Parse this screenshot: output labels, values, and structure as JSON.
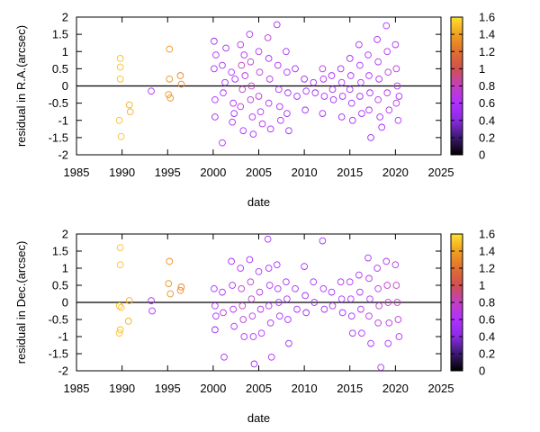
{
  "chart_data": [
    {
      "type": "scatter",
      "xlabel": "date",
      "ylabel": "residual in R.A.(arcsec)",
      "xlim": [
        1985,
        2025
      ],
      "ylim": [
        -2,
        2
      ],
      "xticks": [
        "1985",
        "1990",
        "1995",
        "2000",
        "2005",
        "2010",
        "2015",
        "2020",
        "2025"
      ],
      "yticks": [
        "-2",
        "-1.5",
        "-1",
        "-0.5",
        "0",
        "0.5",
        "1",
        "1.5",
        "2"
      ],
      "zero_line": true,
      "grid": false,
      "colorbar": {
        "range": [
          0,
          1.6
        ],
        "ticks": [
          "0",
          "0.2",
          "0.4",
          "0.6",
          "0.8",
          "1",
          "1.2",
          "1.4",
          "1.6"
        ],
        "colormap": [
          "#000000",
          "#3b1a6e",
          "#8a2be2",
          "#b030ff",
          "#c040c0",
          "#d05050",
          "#e07030",
          "#f0a020",
          "#ffe030"
        ]
      },
      "points": [
        [
          1989.8,
          0.8,
          1.5
        ],
        [
          1989.8,
          0.55,
          1.5
        ],
        [
          1989.8,
          0.2,
          1.5
        ],
        [
          1989.7,
          -1.0,
          1.5
        ],
        [
          1989.9,
          -1.47,
          1.5
        ],
        [
          1990.8,
          -0.55,
          1.45
        ],
        [
          1990.9,
          -0.75,
          1.45
        ],
        [
          1995.2,
          1.07,
          1.35
        ],
        [
          1995.2,
          0.2,
          1.35
        ],
        [
          1995.1,
          -0.25,
          1.35
        ],
        [
          1995.3,
          -0.35,
          1.35
        ],
        [
          1996.4,
          0.3,
          1.3
        ],
        [
          1996.5,
          0.05,
          1.3
        ],
        [
          1993.2,
          -0.15,
          0.55
        ],
        [
          2000.1,
          1.3,
          0.5
        ],
        [
          2000.1,
          0.5,
          0.55
        ],
        [
          2000.2,
          -0.4,
          0.6
        ],
        [
          2000.3,
          0.9,
          0.6
        ],
        [
          2000.2,
          -0.9,
          0.5
        ],
        [
          2001.0,
          0.6,
          0.55
        ],
        [
          2001.1,
          -0.2,
          0.6
        ],
        [
          2001.0,
          -1.65,
          0.55
        ],
        [
          2001.3,
          0.1,
          0.5
        ],
        [
          2001.4,
          1.1,
          0.55
        ],
        [
          2002.0,
          0.4,
          0.6
        ],
        [
          2002.2,
          -0.5,
          0.55
        ],
        [
          2002.1,
          -1.05,
          0.55
        ],
        [
          2002.4,
          0.2,
          0.6
        ],
        [
          2002.3,
          -0.8,
          0.55
        ],
        [
          2003.0,
          1.2,
          0.7
        ],
        [
          2003.1,
          0.6,
          0.8
        ],
        [
          2003.2,
          -0.1,
          0.8
        ],
        [
          2003.0,
          -0.6,
          0.75
        ],
        [
          2003.3,
          -1.3,
          0.6
        ],
        [
          2003.4,
          0.9,
          0.6
        ],
        [
          2003.5,
          0.3,
          0.7
        ],
        [
          2004.0,
          1.5,
          0.6
        ],
        [
          2004.1,
          0.7,
          0.75
        ],
        [
          2004.2,
          0.0,
          0.8
        ],
        [
          2004.1,
          -0.4,
          0.7
        ],
        [
          2004.3,
          -0.9,
          0.6
        ],
        [
          2004.4,
          -1.4,
          0.55
        ],
        [
          2005.0,
          1.0,
          0.6
        ],
        [
          2005.1,
          0.4,
          0.7
        ],
        [
          2005.0,
          -0.3,
          0.7
        ],
        [
          2005.2,
          -0.75,
          0.6
        ],
        [
          2005.4,
          -1.1,
          0.55
        ],
        [
          2006.0,
          1.4,
          0.75
        ],
        [
          2006.1,
          0.8,
          0.6
        ],
        [
          2006.2,
          0.2,
          0.65
        ],
        [
          2006.1,
          -0.5,
          0.6
        ],
        [
          2006.3,
          -1.25,
          0.55
        ],
        [
          2007.0,
          1.78,
          0.55
        ],
        [
          2007.1,
          0.6,
          0.6
        ],
        [
          2007.2,
          -0.1,
          0.6
        ],
        [
          2007.3,
          -0.6,
          0.55
        ],
        [
          2007.4,
          -1.0,
          0.55
        ],
        [
          2008.0,
          1.0,
          0.55
        ],
        [
          2008.1,
          0.4,
          0.6
        ],
        [
          2008.2,
          -0.2,
          0.55
        ],
        [
          2008.1,
          -0.8,
          0.55
        ],
        [
          2008.3,
          -1.3,
          0.5
        ],
        [
          2009.0,
          0.5,
          0.55
        ],
        [
          2009.2,
          -0.3,
          0.55
        ],
        [
          2010.0,
          0.2,
          0.5
        ],
        [
          2010.2,
          -0.15,
          0.55
        ],
        [
          2010.1,
          -0.7,
          0.5
        ],
        [
          2011.0,
          0.1,
          0.55
        ],
        [
          2011.2,
          -0.2,
          0.5
        ],
        [
          2012.0,
          0.5,
          0.7
        ],
        [
          2012.1,
          0.2,
          0.6
        ],
        [
          2012.2,
          -0.3,
          0.6
        ],
        [
          2012.0,
          -0.8,
          0.55
        ],
        [
          2013.0,
          0.3,
          0.55
        ],
        [
          2013.1,
          -0.1,
          0.55
        ],
        [
          2013.2,
          -0.4,
          0.5
        ],
        [
          2014.0,
          0.5,
          0.55
        ],
        [
          2014.1,
          0.1,
          0.6
        ],
        [
          2014.2,
          -0.3,
          0.55
        ],
        [
          2014.1,
          -0.9,
          0.5
        ],
        [
          2015.0,
          0.8,
          0.55
        ],
        [
          2015.1,
          0.3,
          0.6
        ],
        [
          2015.0,
          -0.1,
          0.55
        ],
        [
          2015.2,
          -0.5,
          0.55
        ],
        [
          2015.3,
          -1.0,
          0.5
        ],
        [
          2016.0,
          1.2,
          0.55
        ],
        [
          2016.1,
          0.6,
          0.6
        ],
        [
          2016.2,
          0.1,
          0.6
        ],
        [
          2016.1,
          -0.3,
          0.55
        ],
        [
          2016.3,
          -0.8,
          0.55
        ],
        [
          2017.0,
          0.9,
          0.6
        ],
        [
          2017.1,
          0.3,
          0.6
        ],
        [
          2017.2,
          -0.2,
          0.55
        ],
        [
          2017.1,
          -0.7,
          0.55
        ],
        [
          2017.3,
          -1.5,
          0.5
        ],
        [
          2018.0,
          1.35,
          0.55
        ],
        [
          2018.1,
          0.7,
          0.65
        ],
        [
          2018.2,
          0.2,
          0.6
        ],
        [
          2018.1,
          -0.4,
          0.65
        ],
        [
          2018.3,
          -0.9,
          0.55
        ],
        [
          2018.5,
          -1.2,
          0.55
        ],
        [
          2019.0,
          1.75,
          0.6
        ],
        [
          2019.1,
          1.0,
          0.65
        ],
        [
          2019.2,
          0.4,
          0.7
        ],
        [
          2019.1,
          -0.2,
          0.7
        ],
        [
          2019.3,
          -0.7,
          0.65
        ],
        [
          2020.0,
          1.2,
          0.6
        ],
        [
          2020.1,
          0.5,
          0.7
        ],
        [
          2020.2,
          0.0,
          0.7
        ],
        [
          2020.1,
          -0.5,
          0.65
        ],
        [
          2020.3,
          -1.0,
          0.6
        ],
        [
          2020.4,
          -0.3,
          0.6
        ]
      ]
    },
    {
      "type": "scatter",
      "xlabel": "date",
      "ylabel": "residual in Dec.(arcsec)",
      "xlim": [
        1985,
        2025
      ],
      "ylim": [
        -2,
        2
      ],
      "xticks": [
        "1985",
        "1990",
        "1995",
        "2000",
        "2005",
        "2010",
        "2015",
        "2020",
        "2025"
      ],
      "yticks": [
        "-2",
        "-1.5",
        "-1",
        "-0.5",
        "0",
        "0.5",
        "1",
        "1.5",
        "2"
      ],
      "zero_line": true,
      "grid": false,
      "colorbar": {
        "range": [
          0,
          1.6
        ],
        "ticks": [
          "0",
          "0.2",
          "0.4",
          "0.6",
          "0.8",
          "1",
          "1.2",
          "1.4",
          "1.6"
        ],
        "colormap": [
          "#000000",
          "#3b1a6e",
          "#8a2be2",
          "#b030ff",
          "#c040c0",
          "#d05050",
          "#e07030",
          "#f0a020",
          "#ffe030"
        ]
      },
      "points": [
        [
          1989.8,
          1.6,
          1.5
        ],
        [
          1989.8,
          1.1,
          1.5
        ],
        [
          1989.7,
          -0.1,
          1.5
        ],
        [
          1989.9,
          -0.15,
          1.5
        ],
        [
          1989.8,
          -0.8,
          1.5
        ],
        [
          1989.7,
          -0.9,
          1.5
        ],
        [
          1990.8,
          0.05,
          1.45
        ],
        [
          1990.7,
          -0.55,
          1.45
        ],
        [
          1995.2,
          1.2,
          1.35
        ],
        [
          1995.1,
          0.55,
          1.35
        ],
        [
          1995.3,
          0.25,
          1.35
        ],
        [
          1996.4,
          0.35,
          1.3
        ],
        [
          1996.5,
          0.45,
          1.3
        ],
        [
          1993.2,
          0.05,
          0.55
        ],
        [
          1993.3,
          -0.25,
          0.55
        ],
        [
          2000.1,
          0.4,
          0.55
        ],
        [
          2000.2,
          -0.1,
          0.6
        ],
        [
          2000.3,
          -0.4,
          0.55
        ],
        [
          2000.2,
          -0.8,
          0.5
        ],
        [
          2001.0,
          0.3,
          0.6
        ],
        [
          2001.1,
          -0.3,
          0.7
        ],
        [
          2001.2,
          -1.6,
          0.55
        ],
        [
          2002.0,
          1.2,
          0.55
        ],
        [
          2002.1,
          0.5,
          0.6
        ],
        [
          2002.2,
          -0.2,
          0.65
        ],
        [
          2002.3,
          -0.7,
          0.6
        ],
        [
          2003.0,
          1.0,
          0.6
        ],
        [
          2003.1,
          0.4,
          0.75
        ],
        [
          2003.2,
          -0.1,
          0.8
        ],
        [
          2003.3,
          -0.5,
          0.75
        ],
        [
          2003.4,
          -1.0,
          0.6
        ],
        [
          2004.0,
          1.25,
          0.55
        ],
        [
          2004.1,
          0.6,
          0.7
        ],
        [
          2004.2,
          0.1,
          0.75
        ],
        [
          2004.3,
          -0.4,
          0.7
        ],
        [
          2004.4,
          -1.0,
          0.6
        ],
        [
          2004.5,
          -1.8,
          0.55
        ],
        [
          2005.0,
          0.9,
          0.6
        ],
        [
          2005.1,
          0.3,
          0.65
        ],
        [
          2005.2,
          -0.2,
          0.65
        ],
        [
          2005.3,
          -0.9,
          0.6
        ],
        [
          2006.0,
          1.85,
          0.55
        ],
        [
          2006.1,
          1.0,
          0.6
        ],
        [
          2006.2,
          0.5,
          0.65
        ],
        [
          2006.1,
          -0.1,
          0.6
        ],
        [
          2006.3,
          -0.6,
          0.55
        ],
        [
          2006.4,
          -1.6,
          0.55
        ],
        [
          2007.0,
          1.1,
          0.55
        ],
        [
          2007.1,
          0.4,
          0.6
        ],
        [
          2007.2,
          0.0,
          0.6
        ],
        [
          2007.3,
          -0.4,
          0.55
        ],
        [
          2008.0,
          0.6,
          0.55
        ],
        [
          2008.1,
          0.1,
          0.6
        ],
        [
          2008.2,
          -0.5,
          0.55
        ],
        [
          2008.3,
          -1.2,
          0.5
        ],
        [
          2009.0,
          0.4,
          0.55
        ],
        [
          2009.2,
          -0.2,
          0.55
        ],
        [
          2010.0,
          1.05,
          0.55
        ],
        [
          2010.1,
          0.2,
          0.55
        ],
        [
          2010.2,
          -0.3,
          0.5
        ],
        [
          2011.0,
          0.6,
          0.55
        ],
        [
          2011.1,
          0.0,
          0.5
        ],
        [
          2012.0,
          1.8,
          0.55
        ],
        [
          2012.1,
          0.4,
          0.6
        ],
        [
          2012.2,
          -0.2,
          0.55
        ],
        [
          2013.0,
          0.3,
          0.55
        ],
        [
          2013.1,
          -0.1,
          0.55
        ],
        [
          2014.0,
          0.6,
          0.55
        ],
        [
          2014.1,
          0.1,
          0.6
        ],
        [
          2014.2,
          -0.3,
          0.55
        ],
        [
          2015.0,
          0.6,
          0.6
        ],
        [
          2015.1,
          0.1,
          0.6
        ],
        [
          2015.2,
          -0.4,
          0.55
        ],
        [
          2015.3,
          -0.9,
          0.5
        ],
        [
          2016.0,
          0.8,
          0.6
        ],
        [
          2016.1,
          0.3,
          0.6
        ],
        [
          2016.2,
          -0.2,
          0.6
        ],
        [
          2016.3,
          -0.9,
          0.55
        ],
        [
          2017.0,
          1.3,
          0.6
        ],
        [
          2017.1,
          0.7,
          0.65
        ],
        [
          2017.2,
          0.1,
          0.6
        ],
        [
          2017.1,
          -0.4,
          0.6
        ],
        [
          2017.3,
          -1.2,
          0.55
        ],
        [
          2018.0,
          1.0,
          0.65
        ],
        [
          2018.1,
          0.4,
          0.7
        ],
        [
          2018.2,
          -0.1,
          0.75
        ],
        [
          2018.1,
          -0.6,
          0.7
        ],
        [
          2018.4,
          -1.9,
          0.55
        ],
        [
          2019.0,
          1.2,
          0.65
        ],
        [
          2019.1,
          0.5,
          0.75
        ],
        [
          2019.2,
          0.0,
          0.8
        ],
        [
          2019.3,
          -0.6,
          0.7
        ],
        [
          2019.2,
          -1.2,
          0.6
        ],
        [
          2020.0,
          1.1,
          0.65
        ],
        [
          2020.1,
          0.5,
          0.8
        ],
        [
          2020.2,
          0.0,
          0.75
        ],
        [
          2020.3,
          -0.5,
          0.7
        ],
        [
          2020.4,
          -1.0,
          0.6
        ]
      ]
    }
  ]
}
